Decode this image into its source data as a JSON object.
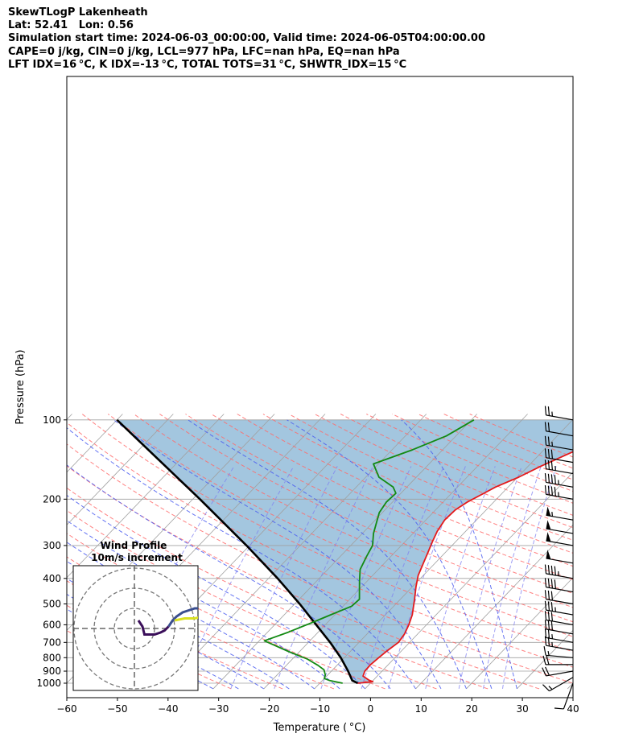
{
  "header": {
    "title": "SkewTLogP Lakenheath",
    "latlon": "Lat: 52.41   Lon: 0.56",
    "times": "Simulation start time: 2024-06-03_00:00:00, Valid time: 2024-06-05T04:00:00.00",
    "params": "CAPE=0 j/kg, CIN=0 j/kg, LCL=977 hPa, LFC=nan hPa, EQ=nan hPa",
    "indices": "LFT IDX=16 °C, K IDX=-13 °C, TOTAL TOTS=31 °C, SHWTR_IDX=15 °C"
  },
  "colors": {
    "temperature": "#e41a1c",
    "dewpoint": "#138a13",
    "parcel": "#000000",
    "cin_shade": "#a3c6df",
    "dry_adiabat": "#ff6b6b",
    "moist_adiabat": "#4a5cf0",
    "mixing_ratio": "#7f7ff0",
    "isotherm": "#a0a0a0",
    "hodo_low": "#3b0f5a",
    "hodo_mid": "#3a4e8f",
    "hodo_high": "#d9e021"
  },
  "chart_data": {
    "type": "line",
    "title": "",
    "xlabel": "Temperature ( °C)",
    "ylabel": "Pressure (hPa)",
    "xlim": [
      -60,
      40
    ],
    "ylim": [
      1040,
      100
    ],
    "y_scale": "log",
    "x_ticks": [
      "−60",
      "−50",
      "−40",
      "−30",
      "−20",
      "−10",
      "0",
      "10",
      "20",
      "30",
      "40"
    ],
    "y_ticks": [
      "1000",
      "900",
      "800",
      "700",
      "600",
      "500",
      "400",
      "300",
      "200",
      "100"
    ],
    "grid": true,
    "series": [
      {
        "role": "temperature",
        "points": [
          [
            7.5,
            1000
          ],
          [
            10.2,
            987
          ],
          [
            9.2,
            975
          ],
          [
            7.2,
            940
          ],
          [
            6.6,
            900
          ],
          [
            6.5,
            850
          ],
          [
            6.8,
            800
          ],
          [
            7.2,
            750
          ],
          [
            7.8,
            700
          ],
          [
            7.4,
            650
          ],
          [
            6.5,
            600
          ],
          [
            5.3,
            550
          ],
          [
            2.8,
            480
          ],
          [
            0.7,
            430
          ],
          [
            -1.0,
            390
          ],
          [
            -2.3,
            350
          ],
          [
            -3.4,
            320
          ],
          [
            -4.6,
            290
          ],
          [
            -5.6,
            265
          ],
          [
            -6.3,
            240
          ],
          [
            -6.1,
            220
          ],
          [
            -5.2,
            205
          ],
          [
            -3.6,
            190
          ],
          [
            -2.5,
            180
          ],
          [
            0.2,
            165
          ],
          [
            2.5,
            150
          ],
          [
            5.5,
            135
          ],
          [
            9.0,
            120
          ],
          [
            11.2,
            110
          ],
          [
            12.9,
            100
          ]
        ]
      },
      {
        "role": "dewpoint",
        "points": [
          [
            4.5,
            1000
          ],
          [
            1.5,
            978
          ],
          [
            0.0,
            960
          ],
          [
            -0.5,
            930
          ],
          [
            -1.7,
            890
          ],
          [
            -3.8,
            855
          ],
          [
            -7.0,
            810
          ],
          [
            -12.0,
            760
          ],
          [
            -19.0,
            690
          ],
          [
            -15.9,
            640
          ],
          [
            -13.1,
            590
          ],
          [
            -10.8,
            550
          ],
          [
            -8.3,
            510
          ],
          [
            -8.1,
            480
          ],
          [
            -9.5,
            450
          ],
          [
            -11.5,
            410
          ],
          [
            -13.6,
            370
          ],
          [
            -14.8,
            330
          ],
          [
            -15.7,
            300
          ],
          [
            -17.8,
            270
          ],
          [
            -19.3,
            245
          ],
          [
            -20.6,
            225
          ],
          [
            -21.2,
            205
          ],
          [
            -21.0,
            190
          ],
          [
            -22.7,
            180
          ],
          [
            -27.4,
            165
          ],
          [
            -31.0,
            147
          ],
          [
            -26.0,
            130
          ],
          [
            -21.9,
            115
          ],
          [
            -19.5,
            100
          ]
        ]
      },
      {
        "role": "parcel",
        "points": [
          [
            7.5,
            1000
          ],
          [
            5.9,
            977
          ],
          [
            3.3,
            900
          ],
          [
            -0.7,
            800
          ],
          [
            -5.7,
            700
          ],
          [
            -11.8,
            600
          ],
          [
            -19.0,
            500
          ],
          [
            -28.2,
            400
          ],
          [
            -40.6,
            300
          ],
          [
            -58.6,
            200
          ],
          [
            -90.0,
            100
          ]
        ]
      }
    ],
    "wind_barbs": [
      {
        "p": 1000,
        "dir": 200,
        "speed_kt": 10
      },
      {
        "p": 950,
        "dir": 240,
        "speed_kt": 15
      },
      {
        "p": 900,
        "dir": 260,
        "speed_kt": 20
      },
      {
        "p": 850,
        "dir": 270,
        "speed_kt": 20
      },
      {
        "p": 800,
        "dir": 275,
        "speed_kt": 15
      },
      {
        "p": 750,
        "dir": 280,
        "speed_kt": 25
      },
      {
        "p": 700,
        "dir": 280,
        "speed_kt": 25
      },
      {
        "p": 650,
        "dir": 280,
        "speed_kt": 30
      },
      {
        "p": 600,
        "dir": 280,
        "speed_kt": 30
      },
      {
        "p": 550,
        "dir": 280,
        "speed_kt": 35
      },
      {
        "p": 500,
        "dir": 280,
        "speed_kt": 30
      },
      {
        "p": 450,
        "dir": 280,
        "speed_kt": 40
      },
      {
        "p": 400,
        "dir": 280,
        "speed_kt": 45
      },
      {
        "p": 350,
        "dir": 280,
        "speed_kt": 50
      },
      {
        "p": 300,
        "dir": 280,
        "speed_kt": 50
      },
      {
        "p": 270,
        "dir": 280,
        "speed_kt": 50
      },
      {
        "p": 240,
        "dir": 280,
        "speed_kt": 55
      },
      {
        "p": 200,
        "dir": 280,
        "speed_kt": 45
      },
      {
        "p": 180,
        "dir": 280,
        "speed_kt": 45
      },
      {
        "p": 160,
        "dir": 280,
        "speed_kt": 35
      },
      {
        "p": 145,
        "dir": 280,
        "speed_kt": 30
      },
      {
        "p": 130,
        "dir": 280,
        "speed_kt": 25
      },
      {
        "p": 115,
        "dir": 280,
        "speed_kt": 20
      },
      {
        "p": 100,
        "dir": 280,
        "speed_kt": 25
      }
    ],
    "hodograph": {
      "title": "Wind Profile",
      "subtitle": "10m/s increment",
      "ring_step_ms": 10,
      "points": [
        [
          2,
          4
        ],
        [
          4,
          1
        ],
        [
          5,
          -3
        ],
        [
          7,
          -3
        ],
        [
          10,
          -3
        ],
        [
          13,
          -2
        ],
        [
          15,
          -1
        ],
        [
          17,
          1
        ],
        [
          19,
          4
        ],
        [
          21,
          6
        ],
        [
          24,
          8
        ],
        [
          27,
          9
        ],
        [
          30,
          10
        ],
        [
          32,
          10
        ],
        [
          34,
          10
        ]
      ],
      "yellow_tail": [
        [
          20,
          4
        ],
        [
          25,
          5
        ],
        [
          30,
          5
        ],
        [
          34,
          6
        ]
      ]
    }
  }
}
